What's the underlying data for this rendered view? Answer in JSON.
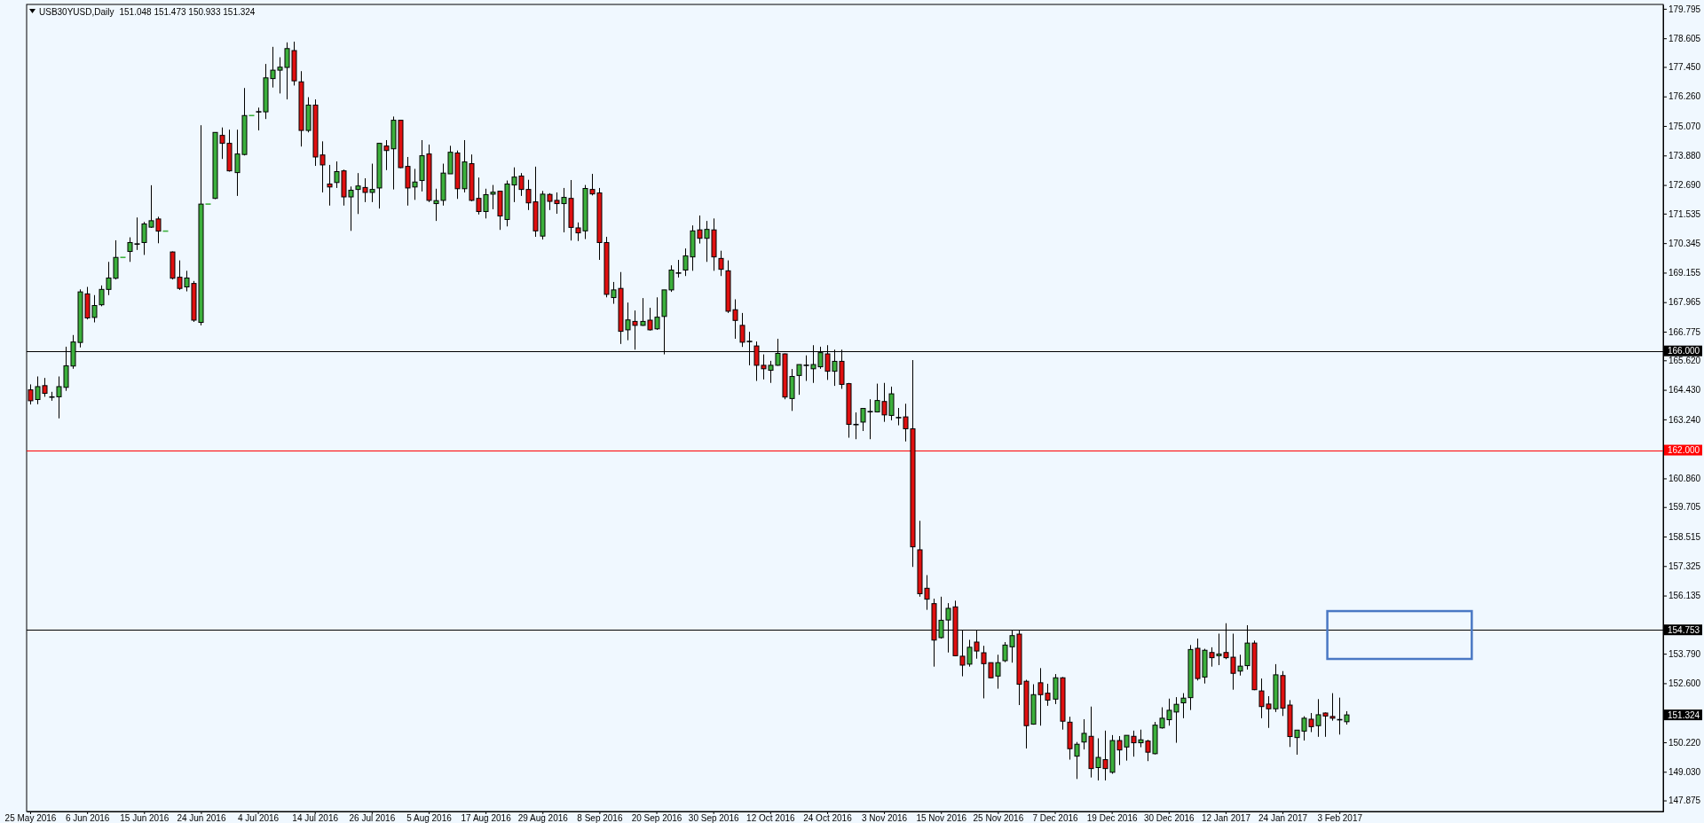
{
  "chart_data": {
    "type": "candlestick",
    "title": "USB30YUSD,Daily",
    "subtitle": "151.048 151.473 150.933 151.324",
    "categories": [
      "25 May 2016",
      null,
      null,
      null,
      null,
      null,
      null,
      null,
      "6 Jun 2016",
      null,
      null,
      null,
      null,
      null,
      null,
      null,
      "15 Jun 2016",
      null,
      null,
      null,
      null,
      null,
      null,
      null,
      "24 Jun 2016",
      null,
      null,
      null,
      null,
      null,
      null,
      null,
      "4 Jul 2016",
      null,
      null,
      null,
      null,
      null,
      null,
      null,
      "14 Jul 2016",
      null,
      null,
      null,
      null,
      null,
      null,
      null,
      "26 Jul 2016",
      null,
      null,
      null,
      null,
      null,
      null,
      null,
      "5 Aug 2016",
      null,
      null,
      null,
      null,
      null,
      null,
      null,
      "17 Aug 2016",
      null,
      null,
      null,
      null,
      null,
      null,
      null,
      "29 Aug 2016",
      null,
      null,
      null,
      null,
      null,
      null,
      null,
      "8 Sep 2016",
      null,
      null,
      null,
      null,
      null,
      null,
      null,
      "20 Sep 2016",
      null,
      null,
      null,
      null,
      null,
      null,
      null,
      "30 Sep 2016",
      null,
      null,
      null,
      null,
      null,
      null,
      null,
      "12 Oct 2016",
      null,
      null,
      null,
      null,
      null,
      null,
      null,
      "24 Oct 2016",
      null,
      null,
      null,
      null,
      null,
      null,
      null,
      "3 Nov 2016",
      null,
      null,
      null,
      null,
      null,
      null,
      null,
      "15 Nov 2016",
      null,
      null,
      null,
      null,
      null,
      null,
      null,
      "25 Nov 2016",
      null,
      null,
      null,
      null,
      null,
      null,
      null,
      "7 Dec 2016",
      null,
      null,
      null,
      null,
      null,
      null,
      null,
      "19 Dec 2016",
      null,
      null,
      null,
      null,
      null,
      null,
      null,
      "30 Dec 2016",
      null,
      null,
      null,
      null,
      null,
      null,
      null,
      "12 Jan 2017",
      null,
      null,
      null,
      null,
      null,
      null,
      null,
      "24 Jan 2017",
      null,
      null,
      null,
      null,
      null,
      null,
      null,
      "3 Feb 2017",
      null,
      null,
      null,
      null,
      null,
      null,
      null,
      null,
      null,
      null,
      null,
      null,
      null,
      null,
      null,
      null,
      null,
      null,
      null,
      null,
      null,
      null,
      null,
      null,
      null,
      null,
      null,
      null,
      null,
      null,
      null,
      null,
      null,
      null,
      null,
      null,
      null,
      null,
      null,
      null,
      null,
      null,
      null,
      null,
      null
    ],
    "ohlc": [
      [
        164.43,
        164.65,
        163.84,
        163.99
      ],
      [
        164.04,
        164.97,
        163.85,
        164.56
      ],
      [
        164.6,
        164.91,
        164.15,
        164.29
      ],
      [
        164.14,
        164.35,
        163.99,
        164.14
      ],
      [
        164.15,
        164.97,
        163.28,
        164.56
      ],
      [
        164.53,
        166.17,
        164.39,
        165.4
      ],
      [
        165.39,
        166.64,
        165.28,
        166.36
      ],
      [
        166.34,
        168.48,
        166.14,
        168.38
      ],
      [
        168.3,
        168.58,
        167.27,
        167.33
      ],
      [
        167.35,
        168.25,
        167.15,
        167.83
      ],
      [
        167.86,
        168.64,
        167.8,
        168.48
      ],
      [
        168.48,
        169.59,
        168.25,
        168.94
      ],
      [
        168.93,
        170.46,
        168.88,
        169.77
      ],
      [
        169.77,
        169.77,
        169.77,
        169.77
      ],
      [
        170.01,
        170.58,
        169.59,
        170.37
      ],
      [
        170.31,
        171.38,
        170.07,
        170.31
      ],
      [
        170.37,
        171.2,
        169.87,
        171.12
      ],
      [
        170.99,
        172.68,
        170.96,
        171.25
      ],
      [
        171.32,
        171.41,
        170.34,
        170.83
      ],
      [
        170.83,
        170.83,
        170.83,
        170.83
      ],
      [
        169.99,
        170.01,
        168.88,
        168.93
      ],
      [
        168.97,
        169.65,
        168.46,
        168.52
      ],
      [
        168.58,
        169.23,
        168.4,
        168.94
      ],
      [
        168.72,
        168.82,
        167.17,
        167.24
      ],
      [
        167.15,
        175.1,
        167.03,
        171.92
      ],
      [
        171.92,
        171.92,
        171.92,
        171.92
      ],
      [
        172.15,
        174.81,
        172.12,
        174.81
      ],
      [
        174.69,
        175.01,
        173.74,
        174.37
      ],
      [
        174.37,
        174.92,
        173.23,
        173.26
      ],
      [
        173.19,
        174.92,
        172.25,
        173.94
      ],
      [
        173.92,
        176.6,
        173.88,
        175.49
      ],
      [
        175.49,
        175.49,
        175.49,
        175.49
      ],
      [
        175.64,
        175.81,
        174.89,
        175.64
      ],
      [
        175.64,
        177.57,
        175.35,
        177.01
      ],
      [
        176.98,
        178.26,
        176.62,
        177.32
      ],
      [
        177.32,
        177.84,
        176.38,
        177.44
      ],
      [
        177.43,
        178.44,
        176.14,
        178.19
      ],
      [
        178.11,
        178.47,
        176.7,
        176.89
      ],
      [
        176.85,
        177.28,
        174.24,
        174.89
      ],
      [
        174.89,
        176.23,
        174.81,
        175.91
      ],
      [
        175.91,
        176.14,
        173.46,
        173.82
      ],
      [
        173.9,
        174.45,
        172.39,
        173.5
      ],
      [
        172.73,
        173.5,
        171.86,
        172.61
      ],
      [
        172.79,
        173.64,
        172.57,
        173.23
      ],
      [
        173.26,
        173.31,
        171.86,
        172.21
      ],
      [
        172.21,
        172.63,
        170.84,
        172.48
      ],
      [
        172.51,
        173.17,
        171.52,
        172.65
      ],
      [
        172.59,
        172.96,
        172.0,
        172.39
      ],
      [
        172.39,
        173.55,
        172.0,
        172.51
      ],
      [
        172.57,
        174.37,
        171.74,
        174.37
      ],
      [
        174.26,
        174.5,
        173.29,
        174.08
      ],
      [
        174.15,
        175.45,
        172.51,
        175.3
      ],
      [
        175.3,
        175.3,
        173.37,
        173.39
      ],
      [
        173.44,
        173.82,
        171.86,
        172.57
      ],
      [
        172.61,
        173.34,
        172.09,
        172.81
      ],
      [
        172.87,
        174.5,
        172.43,
        173.87
      ],
      [
        173.94,
        174.32,
        172.0,
        172.07
      ],
      [
        171.94,
        172.54,
        171.24,
        172.06
      ],
      [
        172.07,
        173.55,
        171.86,
        173.17
      ],
      [
        173.14,
        174.27,
        173.14,
        174.01
      ],
      [
        173.98,
        174.08,
        172.13,
        172.54
      ],
      [
        172.54,
        174.5,
        172.39,
        173.62
      ],
      [
        173.55,
        173.92,
        172.03,
        172.07
      ],
      [
        172.15,
        172.99,
        171.5,
        171.62
      ],
      [
        171.62,
        172.54,
        171.34,
        172.3
      ],
      [
        172.32,
        172.69,
        171.71,
        172.4
      ],
      [
        172.44,
        172.44,
        170.88,
        171.44
      ],
      [
        171.3,
        172.87,
        171.02,
        172.73
      ],
      [
        172.69,
        173.4,
        172.0,
        173.01
      ],
      [
        173.05,
        173.17,
        172.25,
        172.51
      ],
      [
        172.51,
        172.9,
        171.68,
        171.97
      ],
      [
        172.01,
        173.43,
        170.6,
        170.84
      ],
      [
        170.63,
        172.45,
        170.49,
        172.32
      ],
      [
        172.31,
        172.36,
        171.68,
        172.03
      ],
      [
        172.07,
        172.39,
        171.53,
        171.94
      ],
      [
        171.94,
        172.57,
        170.78,
        172.19
      ],
      [
        172.15,
        172.89,
        170.45,
        170.98
      ],
      [
        170.96,
        171.18,
        170.43,
        170.76
      ],
      [
        170.84,
        172.69,
        170.51,
        172.55
      ],
      [
        172.51,
        173.14,
        172.27,
        172.33
      ],
      [
        172.37,
        172.57,
        169.67,
        170.37
      ],
      [
        170.37,
        170.6,
        168.16,
        168.28
      ],
      [
        168.15,
        168.78,
        167.9,
        168.46
      ],
      [
        168.52,
        169.18,
        166.28,
        166.79
      ],
      [
        166.85,
        167.95,
        166.43,
        167.25
      ],
      [
        167.19,
        167.63,
        166.05,
        167.03
      ],
      [
        167.03,
        168.13,
        167.01,
        167.19
      ],
      [
        167.24,
        167.74,
        166.82,
        166.85
      ],
      [
        166.89,
        168.16,
        166.85,
        167.36
      ],
      [
        167.39,
        168.46,
        165.86,
        168.46
      ],
      [
        168.46,
        169.45,
        168.38,
        169.26
      ],
      [
        169.14,
        169.67,
        168.96,
        169.14
      ],
      [
        169.26,
        170.13,
        169.02,
        169.83
      ],
      [
        169.79,
        171.06,
        169.23,
        170.84
      ],
      [
        170.88,
        171.46,
        170.33,
        170.54
      ],
      [
        170.54,
        171.24,
        169.59,
        170.9
      ],
      [
        170.88,
        171.34,
        169.23,
        169.79
      ],
      [
        169.73,
        170.04,
        169.02,
        169.29
      ],
      [
        169.23,
        169.65,
        167.53,
        167.6
      ],
      [
        167.66,
        168.08,
        166.49,
        167.23
      ],
      [
        167.03,
        167.53,
        166.16,
        166.35
      ],
      [
        166.38,
        166.77,
        165.42,
        166.38
      ],
      [
        166.2,
        166.38,
        164.79,
        165.42
      ],
      [
        165.42,
        165.86,
        164.85,
        165.28
      ],
      [
        165.22,
        165.6,
        164.71,
        165.42
      ],
      [
        165.42,
        166.49,
        165.4,
        165.9
      ],
      [
        165.88,
        165.9,
        164.05,
        164.14
      ],
      [
        164.08,
        165.27,
        163.58,
        164.97
      ],
      [
        165.01,
        165.45,
        164.23,
        165.45
      ],
      [
        165.42,
        165.82,
        164.79,
        165.42
      ],
      [
        165.28,
        166.23,
        164.71,
        165.45
      ],
      [
        165.36,
        166.17,
        165.28,
        165.93
      ],
      [
        165.88,
        166.23,
        164.83,
        165.18
      ],
      [
        165.18,
        166.05,
        164.59,
        165.58
      ],
      [
        165.58,
        166.05,
        164.47,
        164.65
      ],
      [
        164.68,
        164.71,
        162.5,
        163.04
      ],
      [
        163.03,
        163.52,
        162.44,
        163.03
      ],
      [
        163.13,
        163.68,
        162.77,
        163.68
      ],
      [
        163.55,
        164.05,
        162.44,
        163.55
      ],
      [
        163.54,
        164.68,
        163.52,
        164.0
      ],
      [
        163.96,
        164.71,
        163.14,
        163.42
      ],
      [
        163.4,
        164.56,
        163.2,
        164.27
      ],
      [
        163.31,
        163.7,
        163.0,
        163.31
      ],
      [
        163.34,
        163.87,
        162.35,
        162.86
      ],
      [
        162.86,
        165.63,
        157.29,
        158.1
      ],
      [
        157.98,
        159.15,
        156.09,
        156.21
      ],
      [
        156.43,
        156.96,
        155.56,
        155.99
      ],
      [
        155.81,
        156.01,
        153.27,
        154.34
      ],
      [
        154.44,
        156.09,
        154.4,
        155.14
      ],
      [
        155.15,
        155.83,
        153.84,
        155.62
      ],
      [
        155.68,
        155.93,
        153.69,
        153.71
      ],
      [
        153.69,
        154.73,
        152.88,
        153.33
      ],
      [
        153.37,
        154.35,
        153.27,
        154.05
      ],
      [
        154.26,
        154.73,
        153.59,
        153.9
      ],
      [
        153.83,
        154.11,
        151.99,
        153.39
      ],
      [
        153.43,
        153.43,
        152.8,
        152.82
      ],
      [
        152.89,
        153.75,
        152.38,
        153.43
      ],
      [
        153.51,
        154.26,
        153.45,
        154.14
      ],
      [
        154.07,
        154.74,
        153.43,
        154.52
      ],
      [
        154.58,
        154.74,
        151.72,
        152.56
      ],
      [
        152.68,
        152.74,
        149.97,
        150.89
      ],
      [
        150.95,
        152.56,
        150.93,
        152.14
      ],
      [
        152.62,
        153.21,
        150.89,
        152.14
      ],
      [
        152.2,
        152.58,
        151.69,
        151.92
      ],
      [
        151.96,
        152.97,
        151.76,
        152.82
      ],
      [
        152.82,
        152.85,
        150.73,
        151.07
      ],
      [
        151.03,
        151.25,
        149.52,
        149.96
      ],
      [
        149.66,
        150.23,
        148.74,
        150.14
      ],
      [
        150.23,
        151.15,
        149.93,
        150.58
      ],
      [
        150.46,
        151.66,
        148.8,
        149.16
      ],
      [
        149.2,
        150.38,
        148.68,
        149.61
      ],
      [
        149.52,
        150.69,
        148.68,
        149.16
      ],
      [
        149.01,
        150.51,
        148.95,
        150.29
      ],
      [
        150.29,
        150.47,
        149.3,
        149.91
      ],
      [
        150.03,
        150.5,
        149.48,
        150.5
      ],
      [
        150.46,
        150.69,
        149.64,
        150.2
      ],
      [
        150.2,
        150.73,
        150.02,
        150.32
      ],
      [
        150.27,
        150.32,
        149.46,
        149.82
      ],
      [
        149.76,
        151.04,
        149.73,
        150.91
      ],
      [
        150.8,
        151.63,
        150.77,
        151.19
      ],
      [
        151.13,
        151.98,
        150.89,
        151.51
      ],
      [
        151.44,
        152.04,
        150.2,
        151.75
      ],
      [
        151.81,
        152.2,
        151.19,
        152.0
      ],
      [
        152.02,
        154.14,
        151.52,
        153.96
      ],
      [
        154.01,
        154.4,
        152.71,
        152.79
      ],
      [
        152.85,
        153.99,
        152.59,
        153.93
      ],
      [
        153.84,
        154.05,
        153.27,
        153.63
      ],
      [
        153.71,
        154.6,
        153.33,
        153.78
      ],
      [
        153.84,
        155.02,
        153.57,
        153.63
      ],
      [
        153.65,
        154.6,
        152.34,
        153.0
      ],
      [
        153.09,
        153.75,
        152.91,
        153.29
      ],
      [
        153.31,
        154.94,
        153.15,
        154.22
      ],
      [
        154.22,
        154.32,
        152.32,
        152.34
      ],
      [
        152.29,
        152.79,
        151.19,
        151.66
      ],
      [
        151.76,
        152.08,
        150.8,
        151.57
      ],
      [
        151.57,
        153.37,
        151.44,
        152.94
      ],
      [
        152.91,
        153.09,
        151.28,
        151.6
      ],
      [
        151.72,
        151.92,
        150.03,
        150.45
      ],
      [
        150.41,
        150.71,
        149.72,
        150.71
      ],
      [
        150.67,
        151.27,
        150.29,
        151.19
      ],
      [
        151.15,
        151.4,
        150.63,
        150.85
      ],
      [
        150.89,
        151.96,
        150.44,
        151.33
      ],
      [
        151.4,
        151.42,
        150.44,
        151.28
      ],
      [
        151.26,
        152.2,
        151.09,
        151.19
      ],
      [
        151.13,
        152.02,
        150.53,
        151.13
      ],
      [
        151.048,
        151.473,
        150.933,
        151.324
      ],
      null,
      null,
      null,
      null,
      null,
      null,
      null,
      null,
      null,
      null,
      null,
      null,
      null,
      null,
      null,
      null,
      null,
      null,
      null,
      null,
      null,
      null,
      null,
      null,
      null,
      null,
      null,
      null,
      null,
      null,
      null,
      null,
      null,
      null,
      null,
      null,
      null,
      null,
      null,
      null,
      null,
      null,
      null,
      null
    ],
    "colors": [
      "#e01010",
      "#3cb03c",
      "#e01010",
      "#000000",
      "#3cb03c",
      "#3cb03c",
      "#3cb03c",
      "#3cb03c",
      "#e01010",
      "#3cb03c",
      "#3cb03c",
      "#3cb03c",
      "#3cb03c",
      "#3cb03c",
      "#3cb03c",
      "#000000",
      "#3cb03c",
      "#3cb03c",
      "#e01010",
      "#3cb03c",
      "#e01010",
      "#e01010",
      "#3cb03c",
      "#e01010",
      "#3cb03c",
      "#3cb03c",
      "#3cb03c",
      "#e01010",
      "#e01010",
      "#3cb03c",
      "#3cb03c",
      "#3cb03c",
      "#000000",
      "#3cb03c",
      "#3cb03c",
      "#3cb03c",
      "#3cb03c",
      "#e01010",
      "#e01010",
      "#3cb03c",
      "#e01010",
      "#e01010",
      "#e01010",
      "#3cb03c",
      "#e01010",
      "#3cb03c",
      "#3cb03c",
      "#e01010",
      "#3cb03c",
      "#3cb03c",
      "#e01010",
      "#3cb03c",
      "#e01010",
      "#e01010",
      "#3cb03c",
      "#3cb03c",
      "#e01010",
      "#3cb03c",
      "#3cb03c",
      "#3cb03c",
      "#e01010",
      "#3cb03c",
      "#e01010",
      "#e01010",
      "#3cb03c",
      "#3cb03c",
      "#e01010",
      "#3cb03c",
      "#3cb03c",
      "#e01010",
      "#e01010",
      "#e01010",
      "#3cb03c",
      "#e01010",
      "#e01010",
      "#3cb03c",
      "#e01010",
      "#e01010",
      "#3cb03c",
      "#e01010",
      "#e01010",
      "#e01010",
      "#3cb03c",
      "#e01010",
      "#3cb03c",
      "#e01010",
      "#3cb03c",
      "#e01010",
      "#3cb03c",
      "#3cb03c",
      "#3cb03c",
      "#000000",
      "#3cb03c",
      "#3cb03c",
      "#e01010",
      "#3cb03c",
      "#e01010",
      "#e01010",
      "#e01010",
      "#e01010",
      "#e01010",
      "#000000",
      "#e01010",
      "#e01010",
      "#3cb03c",
      "#3cb03c",
      "#e01010",
      "#3cb03c",
      "#3cb03c",
      "#000000",
      "#3cb03c",
      "#3cb03c",
      "#e01010",
      "#3cb03c",
      "#e01010",
      "#e01010",
      "#000000",
      "#3cb03c",
      "#000000",
      "#3cb03c",
      "#e01010",
      "#3cb03c",
      "#000000",
      "#e01010",
      "#e01010",
      "#e01010",
      "#e01010",
      "#e01010",
      "#3cb03c",
      "#3cb03c",
      "#e01010",
      "#e01010",
      "#3cb03c",
      "#e01010",
      "#e01010",
      "#e01010",
      "#3cb03c",
      "#3cb03c",
      "#3cb03c",
      "#e01010",
      "#e01010",
      "#3cb03c",
      "#e01010",
      "#e01010",
      "#3cb03c",
      "#e01010",
      "#e01010",
      "#3cb03c",
      "#3cb03c",
      "#e01010",
      "#3cb03c",
      "#e01010",
      "#3cb03c",
      "#e01010",
      "#3cb03c",
      "#e01010",
      "#3cb03c",
      "#e01010",
      "#3cb03c",
      "#3cb03c",
      "#3cb03c",
      "#3cb03c",
      "#3cb03c",
      "#3cb03c",
      "#e01010",
      "#3cb03c",
      "#e01010",
      "#3cb03c",
      "#e01010",
      "#e01010",
      "#3cb03c",
      "#3cb03c",
      "#e01010",
      "#e01010",
      "#e01010",
      "#3cb03c",
      "#e01010",
      "#e01010",
      "#3cb03c",
      "#3cb03c",
      "#e01010",
      "#3cb03c",
      "#e01010",
      "#e01010",
      "#000000",
      "#3cb03c",
      null,
      null,
      null,
      null,
      null,
      null,
      null,
      null,
      null,
      null,
      null,
      null,
      null,
      null,
      null,
      null,
      null,
      null,
      null,
      null,
      null,
      null,
      null,
      null,
      null,
      null,
      null,
      null,
      null,
      null,
      null,
      null,
      null,
      null,
      null,
      null,
      null,
      null,
      null,
      null,
      null,
      null,
      null,
      null
    ],
    "ylim": [
      147.43,
      179.97
    ],
    "yticks": [
      {
        "value": 179.795,
        "label": "179.795"
      },
      {
        "value": 178.605,
        "label": "178.605"
      },
      {
        "value": 177.45,
        "label": "177.450"
      },
      {
        "value": 176.26,
        "label": "176.260"
      },
      {
        "value": 175.07,
        "label": "175.070"
      },
      {
        "value": 173.88,
        "label": "173.880"
      },
      {
        "value": 172.69,
        "label": "172.690"
      },
      {
        "value": 171.535,
        "label": "171.535"
      },
      {
        "value": 170.345,
        "label": "170.345"
      },
      {
        "value": 169.155,
        "label": "169.155"
      },
      {
        "value": 167.965,
        "label": "167.965"
      },
      {
        "value": 166.775,
        "label": "166.775"
      },
      {
        "value": 165.62,
        "label": "165.620"
      },
      {
        "value": 164.43,
        "label": "164.430"
      },
      {
        "value": 163.24,
        "label": "163.240"
      },
      {
        "value": 160.86,
        "label": "160.860"
      },
      {
        "value": 159.705,
        "label": "159.705"
      },
      {
        "value": 158.515,
        "label": "158.515"
      },
      {
        "value": 157.325,
        "label": "157.325"
      },
      {
        "value": 156.135,
        "label": "156.135"
      },
      {
        "value": 154.945,
        "label": null
      },
      {
        "value": 153.79,
        "label": "153.790"
      },
      {
        "value": 152.6,
        "label": "152.600"
      },
      {
        "value": 150.22,
        "label": "150.220"
      },
      {
        "value": 149.03,
        "label": "149.030"
      },
      {
        "value": 147.875,
        "label": "147.875"
      }
    ],
    "ref_lines": [
      {
        "axis": "y",
        "value": 166,
        "label": "166.000",
        "color": "#000000"
      },
      {
        "axis": "y",
        "value": 162,
        "label": "162.000",
        "color": "#ff0000"
      },
      {
        "axis": "y",
        "value": 154.753,
        "label": "154.753",
        "color": "#000000"
      }
    ],
    "annotations": [
      "151.324"
    ]
  }
}
